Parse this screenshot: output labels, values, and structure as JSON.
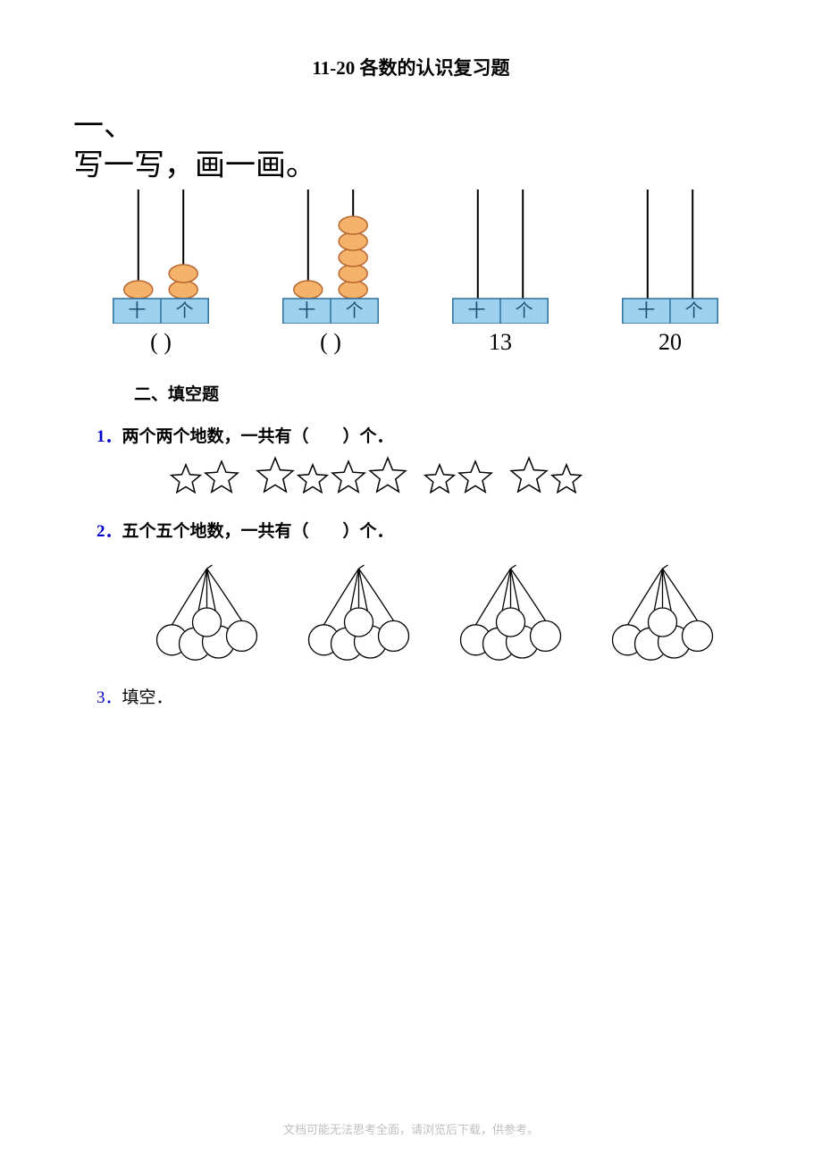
{
  "title": "11-20 各数的认识复习题",
  "sectionOne": {
    "line1": "一、",
    "line2": "写一写，画一画。"
  },
  "abacus": {
    "colors": {
      "bead_fill": "#f4b26a",
      "bead_stroke": "#b8672f",
      "rod": "#000000",
      "base_fill": "#9dd1ee",
      "base_stroke": "#2b6f9d",
      "text": "#1a4f73"
    },
    "units": [
      {
        "tens": 1,
        "ones": 2,
        "label": "(            )"
      },
      {
        "tens": 1,
        "ones": 5,
        "label": "(            )"
      },
      {
        "tens": 0,
        "ones": 0,
        "label": "13"
      },
      {
        "tens": 0,
        "ones": 0,
        "label": "20"
      }
    ],
    "tens_char": "十",
    "ones_char": "个"
  },
  "sectionTwoHeading": "二、填空题",
  "questions": {
    "q1": {
      "num": "1．",
      "text": "两个两个地数，一共有（　　）个．"
    },
    "q2": {
      "num": "2．",
      "text": "五个五个地数，一共有（　　）个．"
    },
    "q3": {
      "num": "3．",
      "text": "填空．"
    }
  },
  "stars": {
    "count": 10,
    "stroke": "#000000",
    "gaps_after": [
      2,
      6,
      8
    ]
  },
  "cherries": {
    "clusters": 4,
    "per_cluster": 5,
    "stroke": "#000000"
  },
  "footer": "文档可能无法思考全面，请浏览后下载，供参考。"
}
